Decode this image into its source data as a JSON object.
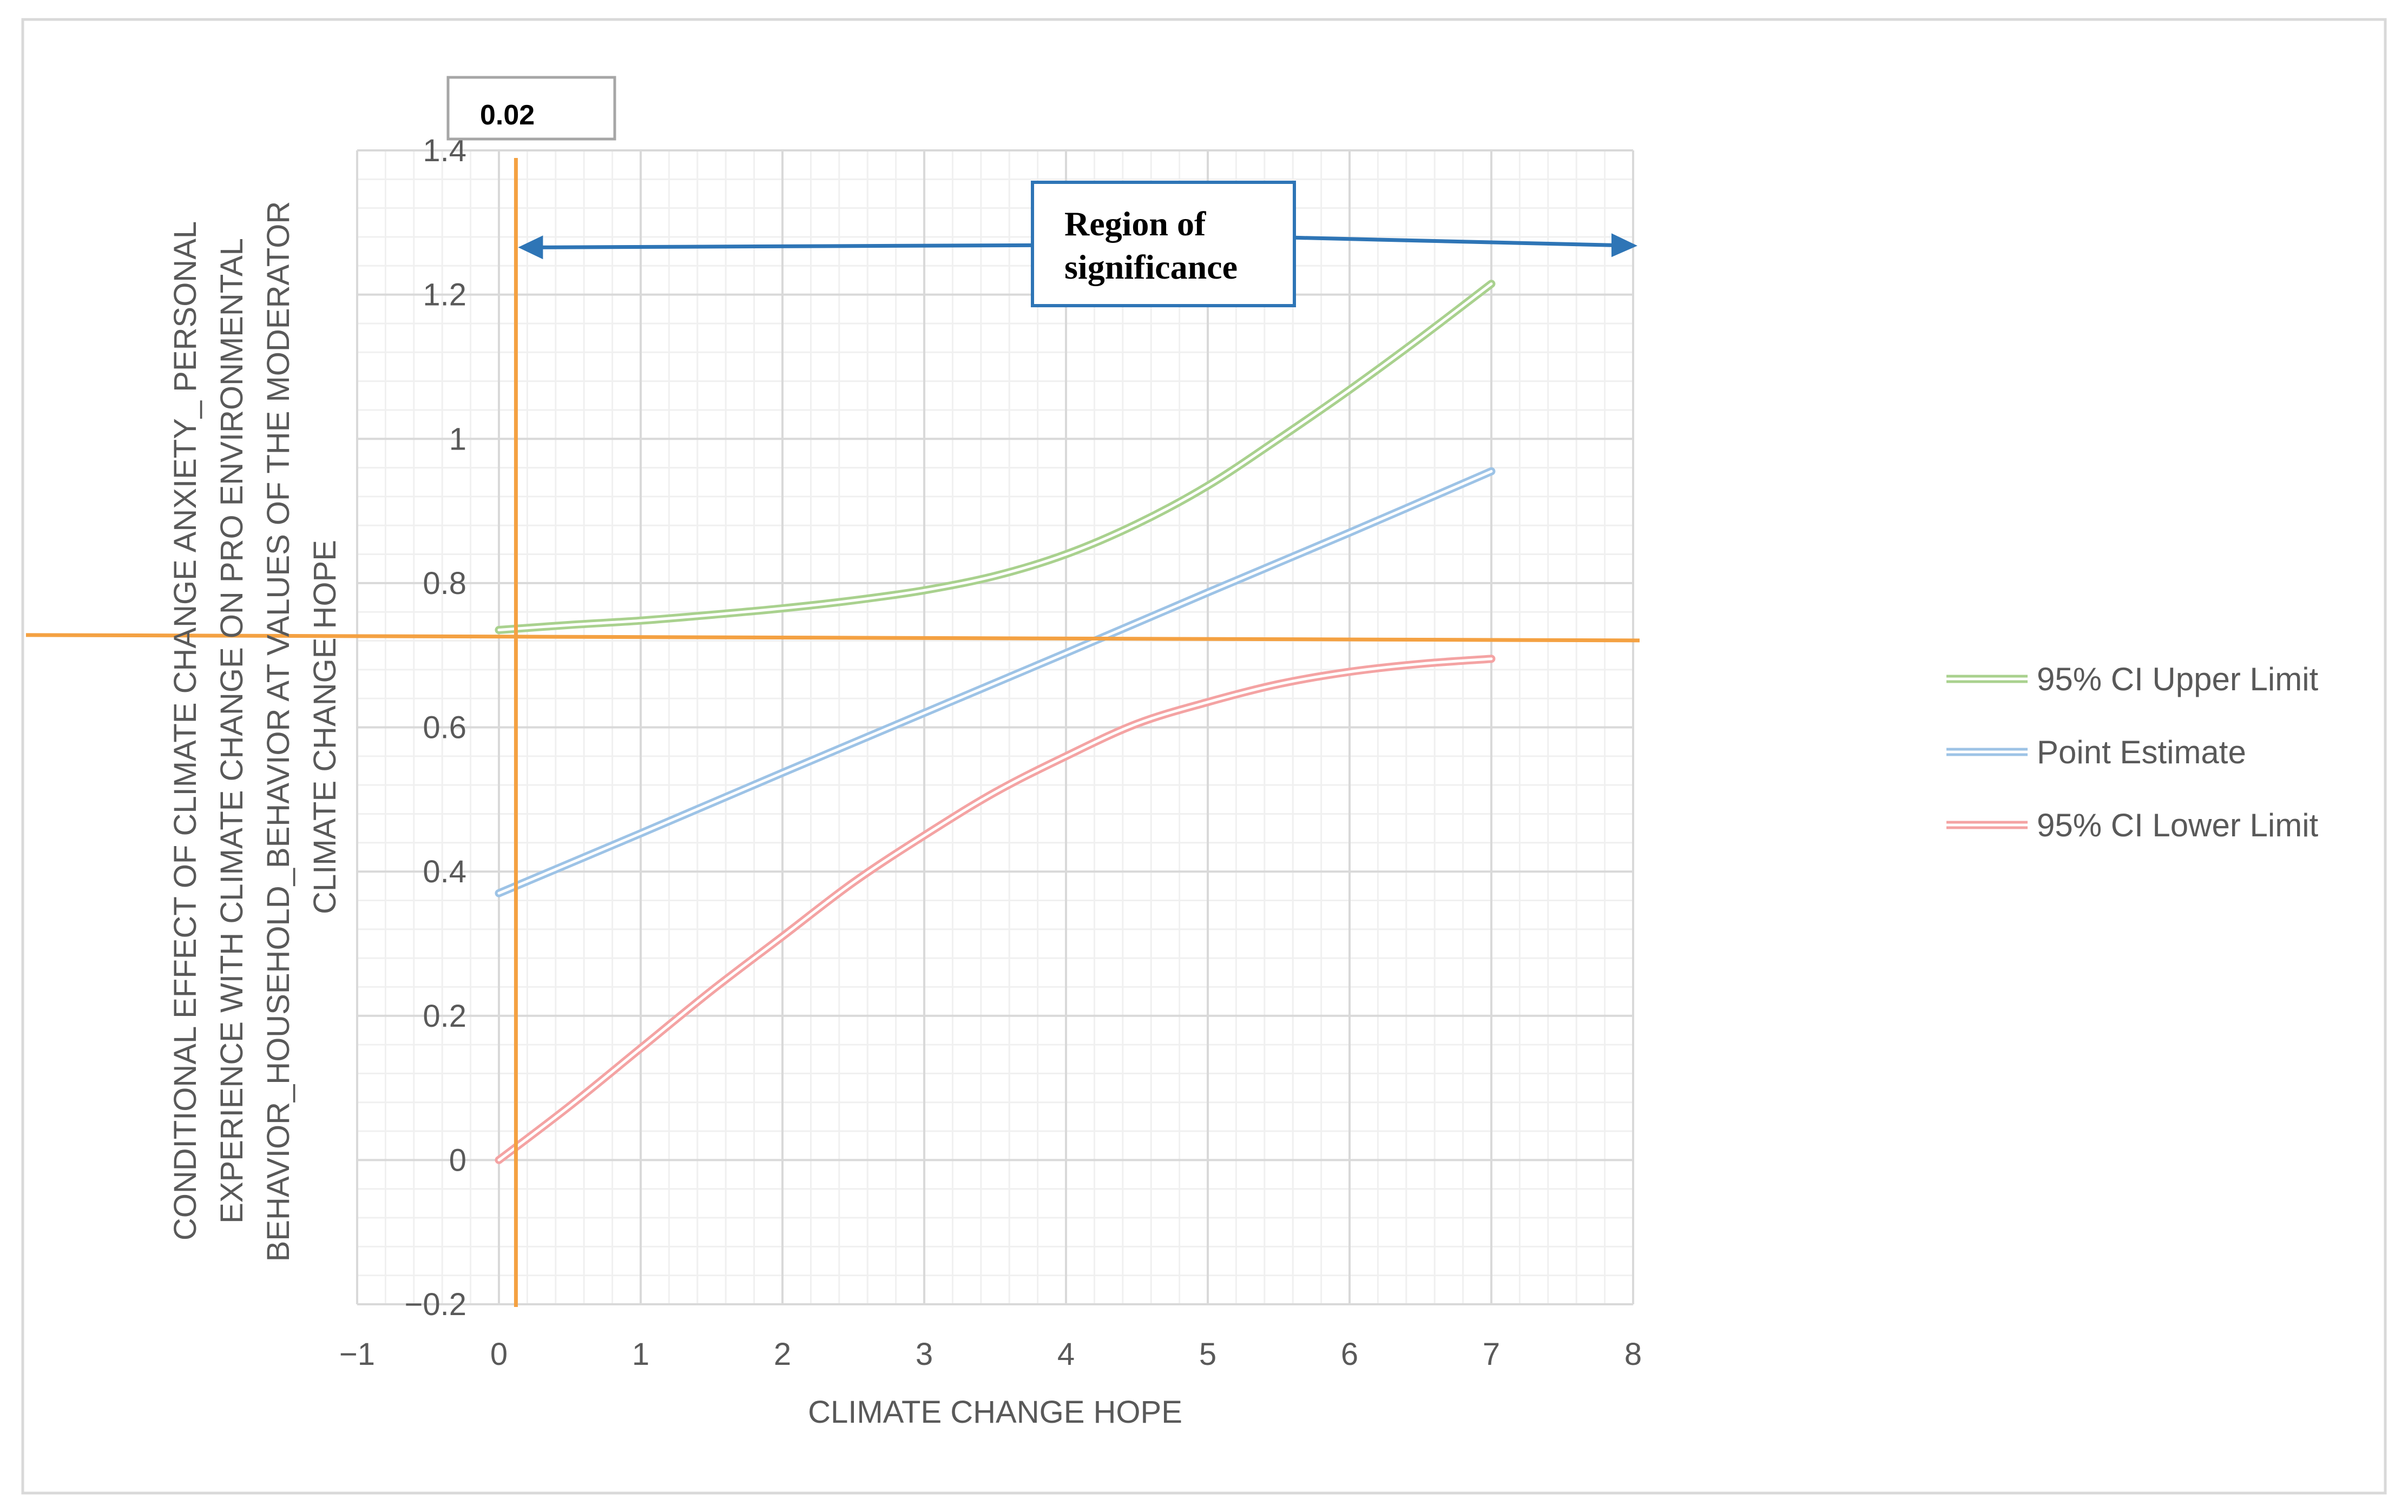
{
  "chart_data": {
    "type": "line",
    "title": "",
    "xlabel": "CLIMATE CHANGE HOPE",
    "ylabel_lines": [
      "CONDITIONAL EFFECT OF CLIMATE CHANGE ANXIETY_ PERSONAL",
      "EXPERIENCE WITH CLIMATE CHANGE ON PRO ENVIRONMENTAL",
      "BEHAVIOR_HOUSEHOLD_BEHAVIOR AT VALUES OF THE MODERATOR",
      "CLIMATE CHANGE HOPE"
    ],
    "xlim": [
      -1,
      8
    ],
    "ylim": [
      -0.2,
      1.4
    ],
    "x_ticks": [
      -1,
      0,
      1,
      2,
      3,
      4,
      5,
      6,
      7,
      8
    ],
    "x_tick_labels": [
      "−1",
      "0",
      "1",
      "2",
      "3",
      "4",
      "5",
      "6",
      "7",
      "8"
    ],
    "y_ticks": [
      -0.2,
      0,
      0.2,
      0.4,
      0.6,
      0.8,
      1,
      1.2,
      1.4
    ],
    "y_tick_labels": [
      "−0.2",
      "0",
      "0.2",
      "0.4",
      "0.6",
      "0.8",
      "1",
      "1.2",
      "1.4"
    ],
    "grid": true,
    "legend_position": "right",
    "series": [
      {
        "name": "95% CI Upper Limit",
        "color": "#a9d18e",
        "x": [
          0,
          0.5,
          1,
          1.5,
          2,
          2.5,
          3,
          3.5,
          4,
          4.5,
          5,
          5.5,
          6,
          6.5,
          7
        ],
        "values": [
          0.735,
          0.742,
          0.748,
          0.756,
          0.765,
          0.776,
          0.79,
          0.81,
          0.84,
          0.882,
          0.935,
          1.0,
          1.068,
          1.14,
          1.215
        ]
      },
      {
        "name": "Point Estimate",
        "color": "#9dc3e6",
        "x": [
          0,
          1,
          2,
          3,
          4,
          5,
          6,
          7
        ],
        "values": [
          0.37,
          0.453,
          0.537,
          0.62,
          0.703,
          0.787,
          0.87,
          0.955
        ]
      },
      {
        "name": "95% CI Lower Limit",
        "color": "#f4a3a3",
        "x": [
          0,
          0.5,
          1,
          1.5,
          2,
          2.5,
          3,
          3.5,
          4,
          4.5,
          5,
          5.5,
          6,
          6.5,
          7
        ],
        "values": [
          0.0,
          0.075,
          0.155,
          0.235,
          0.31,
          0.385,
          0.45,
          0.51,
          0.56,
          0.605,
          0.635,
          0.66,
          0.677,
          0.688,
          0.695
        ]
      }
    ],
    "reference_lines": {
      "vertical_x": 0.12,
      "vertical_label": "0.02",
      "horizontal_y": 0.725,
      "color": "#f4a142"
    },
    "annotation": {
      "text_lines": [
        "Region of",
        "significance"
      ],
      "arrow_color": "#2e75b6",
      "arrow_y": 1.27
    }
  }
}
